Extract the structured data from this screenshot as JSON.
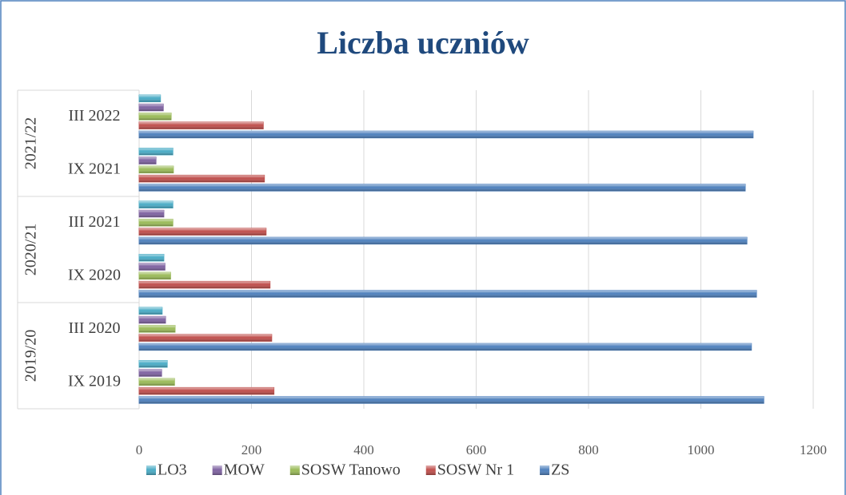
{
  "chart_data": {
    "type": "bar",
    "orientation": "horizontal",
    "title": "Liczba uczniów",
    "categories": [
      "IX 2019",
      "III 2020",
      "IX 2020",
      "III 2021",
      "IX 2021",
      "III 2022"
    ],
    "groups": [
      "2019/20",
      "2020/21",
      "2021/22"
    ],
    "series": [
      {
        "name": "LO3",
        "color": "#4bacc6",
        "values": [
          50,
          41,
          44,
          60,
          60,
          38
        ]
      },
      {
        "name": "MOW",
        "color": "#8064a2",
        "values": [
          40,
          47,
          46,
          44,
          30,
          43
        ]
      },
      {
        "name": "SOSW Tanowo",
        "color": "#9bbb59",
        "values": [
          63,
          64,
          56,
          60,
          61,
          57
        ]
      },
      {
        "name": "SOSW Nr 1",
        "color": "#c0504d",
        "values": [
          240,
          236,
          233,
          226,
          223,
          221
        ]
      },
      {
        "name": "ZS",
        "color": "#4f81bd",
        "values": [
          1112,
          1090,
          1099,
          1082,
          1079,
          1093
        ]
      }
    ],
    "xlim": [
      0,
      1200
    ],
    "xticks": [
      0,
      200,
      400,
      600,
      800,
      1000,
      1200
    ],
    "grid": true,
    "legend": "bottom"
  }
}
